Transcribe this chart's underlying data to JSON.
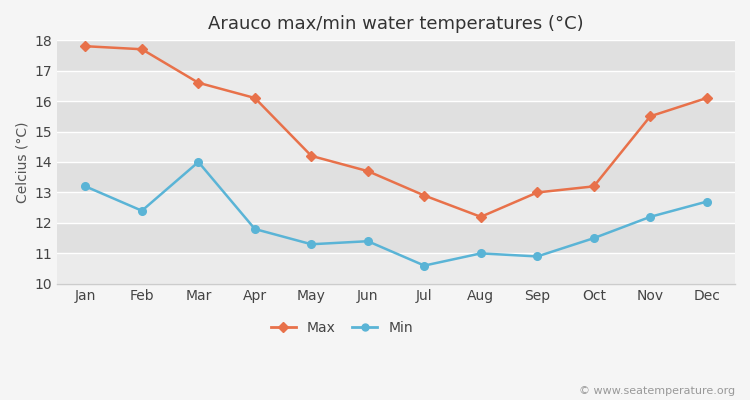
{
  "months": [
    "Jan",
    "Feb",
    "Mar",
    "Apr",
    "May",
    "Jun",
    "Jul",
    "Aug",
    "Sep",
    "Oct",
    "Nov",
    "Dec"
  ],
  "max_temps": [
    17.8,
    17.7,
    16.6,
    16.1,
    14.2,
    13.7,
    12.9,
    12.2,
    13.0,
    13.2,
    15.5,
    16.1
  ],
  "min_temps": [
    13.2,
    12.4,
    14.0,
    11.8,
    11.3,
    11.4,
    10.6,
    11.0,
    10.9,
    11.5,
    12.2,
    12.7
  ],
  "max_color": "#E8714A",
  "min_color": "#5AB4D6",
  "title": "Arauco max/min water temperatures (°C)",
  "ylabel": "Celcius (°C)",
  "ylim": [
    10,
    18
  ],
  "yticks": [
    10,
    11,
    12,
    13,
    14,
    15,
    16,
    17,
    18
  ],
  "plot_bg_light": "#ebebeb",
  "plot_bg_dark": "#e0e0e0",
  "fig_bg": "#f5f5f5",
  "grid_color": "#ffffff",
  "legend_max": "Max",
  "legend_min": "Min",
  "watermark": "© www.seatemperature.org",
  "title_fontsize": 13,
  "label_fontsize": 10,
  "tick_fontsize": 10,
  "watermark_fontsize": 8
}
